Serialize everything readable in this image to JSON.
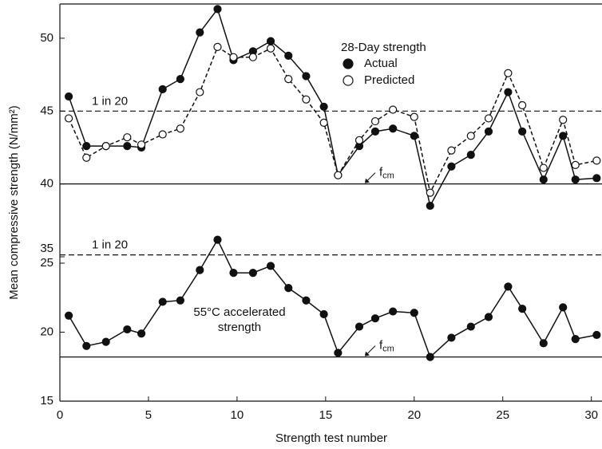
{
  "chart_data": {
    "type": "line",
    "xlabel": "Strength test number",
    "ylabel": "Mean compressive strength (N/mm²)",
    "xlim": [
      0,
      30.6
    ],
    "xticks": [
      0,
      5,
      10,
      15,
      20,
      25,
      30
    ],
    "ylim": [
      35,
      52.35
    ],
    "yticks": [
      35,
      40,
      45,
      50
    ],
    "y2lim": [
      15,
      25
    ],
    "y2ticks": [
      15,
      20,
      25
    ],
    "x": [
      0.5,
      1.5,
      2.6,
      3.8,
      4.6,
      5.8,
      6.8,
      7.9,
      8.9,
      9.8,
      10.9,
      11.9,
      12.9,
      13.9,
      14.9,
      15.7,
      16.9,
      17.8,
      18.8,
      20.0,
      20.9,
      22.1,
      23.2,
      24.2,
      25.3,
      26.1,
      27.3,
      28.4,
      29.1,
      30.3
    ],
    "legend_title": "28-Day strength",
    "series": [
      {
        "name": "Actual",
        "color": "#111111",
        "marker": "filled",
        "line": "solid",
        "values": [
          46,
          42.6,
          42.6,
          42.6,
          42.5,
          46.5,
          47.2,
          50.4,
          52,
          48.5,
          49.1,
          49.8,
          48.8,
          47.4,
          45.3,
          40.6,
          42.6,
          43.6,
          43.8,
          43.3,
          38.5,
          41.2,
          42,
          43.6,
          46.3,
          43.6,
          40.3,
          43.3,
          40.3,
          40.4
        ]
      },
      {
        "name": "Predicted",
        "color": "#111111",
        "marker": "open",
        "line": "dashed",
        "values": [
          44.5,
          41.8,
          42.6,
          43.2,
          42.7,
          43.4,
          43.8,
          46.3,
          49.4,
          48.7,
          48.7,
          49.3,
          47.2,
          45.8,
          44.2,
          40.6,
          43,
          44.3,
          45.1,
          44.6,
          39.4,
          42.3,
          43.3,
          44.5,
          47.6,
          45.4,
          41.1,
          44.4,
          41.3,
          41.6
        ]
      },
      {
        "color": "#111111",
        "marker": "filled",
        "line": "solid",
        "axis": "y2",
        "values": [
          21.2,
          19,
          19.3,
          20.2,
          19.9,
          22.2,
          22.3,
          24.5,
          26.7,
          24.3,
          24.3,
          24.8,
          23.2,
          22.3,
          21.3,
          18.5,
          20.4,
          21,
          21.5,
          21.4,
          18.2,
          19.6,
          20.4,
          21.1,
          23.3,
          21.7,
          19.2,
          21.8,
          19.5,
          19.8
        ]
      }
    ],
    "reference_lines": [
      {
        "value": 45,
        "axis": "y",
        "style": "dashed",
        "label": "1 in 20"
      },
      {
        "value": 40,
        "axis": "y",
        "style": "solid",
        "label": "f",
        "label_sub": "cm"
      },
      {
        "value": 25.6,
        "axis": "y2",
        "style": "dashed",
        "label": "1 in 20"
      },
      {
        "value": 18.2,
        "axis": "y2",
        "style": "solid",
        "label": "f",
        "label_sub": "cm"
      }
    ],
    "annotation": [
      "55°C accelerated",
      "strength"
    ]
  }
}
